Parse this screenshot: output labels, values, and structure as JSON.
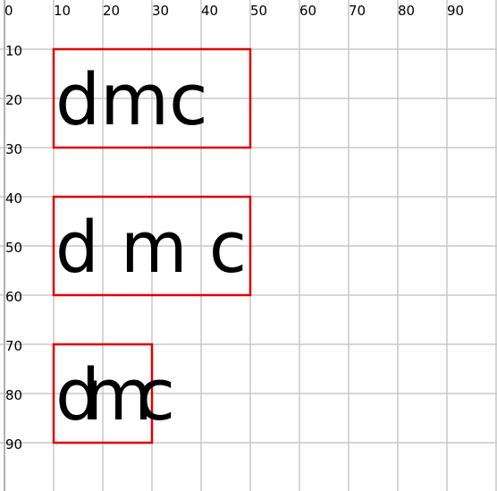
{
  "grid": {
    "x_ticks": [
      "0",
      "10",
      "20",
      "30",
      "40",
      "50",
      "60",
      "70",
      "80",
      "90"
    ],
    "y_ticks": [
      "10",
      "20",
      "30",
      "40",
      "50",
      "60",
      "70",
      "80",
      "90"
    ],
    "line_color": "#c8c8c8"
  },
  "samples": [
    {
      "text": "dmc",
      "box_color": "#e00000"
    },
    {
      "text": "d m c",
      "box_color": "#e00000"
    },
    {
      "text": "dmc",
      "box_color": "#e00000"
    }
  ]
}
